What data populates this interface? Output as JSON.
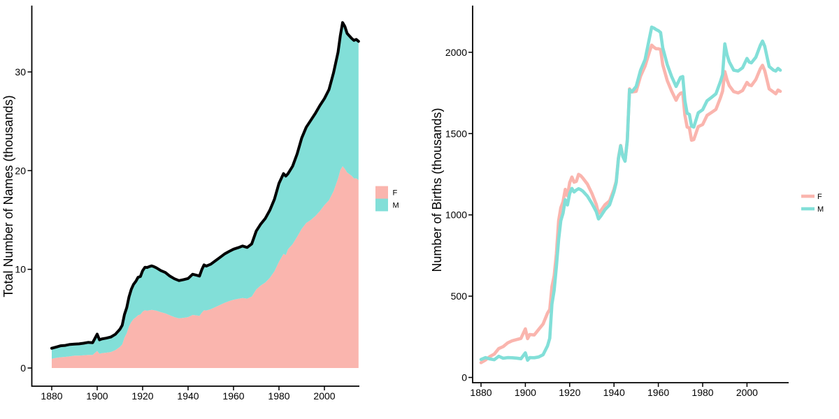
{
  "figure": {
    "background": "#ffffff",
    "text_color": "#000000",
    "axis_color": "#000000",
    "f_color": "#FAB5AE",
    "m_color": "#82DFD8",
    "total_line_color": "#000000"
  },
  "chart_data": [
    {
      "type": "area",
      "stacked": true,
      "title": "",
      "xlabel": "",
      "ylabel": "Total Number of Names (thousands)",
      "x_ticks": [
        1880,
        1900,
        1920,
        1940,
        1960,
        1980,
        2000
      ],
      "y_ticks": [
        0,
        10,
        20,
        30
      ],
      "xlim": [
        1876,
        2017
      ],
      "ylim": [
        0,
        36.8
      ],
      "grid": false,
      "legend": {
        "position": "right",
        "swatch": "fill",
        "entries": [
          {
            "label": "F",
            "color": "#FAB5AE"
          },
          {
            "label": "M",
            "color": "#82DFD8"
          }
        ]
      },
      "total_line": {
        "name": "Total",
        "color": "#000000",
        "width": 4
      },
      "x": [
        1880,
        1882,
        1884,
        1886,
        1888,
        1890,
        1892,
        1894,
        1896,
        1898,
        1900,
        1901,
        1902,
        1904,
        1906,
        1908,
        1910,
        1911,
        1912,
        1913,
        1914,
        1915,
        1916,
        1917,
        1918,
        1919,
        1920,
        1921,
        1922,
        1923,
        1924,
        1925,
        1926,
        1928,
        1930,
        1932,
        1934,
        1936,
        1938,
        1940,
        1942,
        1944,
        1945,
        1946,
        1947,
        1948,
        1950,
        1952,
        1954,
        1956,
        1958,
        1960,
        1962,
        1964,
        1966,
        1968,
        1970,
        1972,
        1974,
        1976,
        1978,
        1980,
        1982,
        1983,
        1984,
        1986,
        1988,
        1990,
        1992,
        1994,
        1996,
        1998,
        2000,
        2002,
        2004,
        2006,
        2007,
        2008,
        2009,
        2010,
        2012,
        2013,
        2014,
        2015
      ],
      "series": [
        {
          "name": "F",
          "color": "#FAB5AE",
          "values": [
            0.94,
            1.03,
            1.1,
            1.13,
            1.19,
            1.26,
            1.26,
            1.29,
            1.33,
            1.33,
            1.73,
            1.44,
            1.51,
            1.56,
            1.62,
            1.81,
            2.14,
            2.39,
            3.07,
            3.53,
            4.22,
            4.66,
            4.96,
            5.14,
            5.35,
            5.42,
            5.72,
            5.85,
            5.8,
            5.85,
            5.89,
            5.86,
            5.81,
            5.66,
            5.54,
            5.34,
            5.16,
            5.03,
            5.09,
            5.16,
            5.38,
            5.32,
            5.28,
            5.6,
            5.86,
            5.83,
            5.96,
            6.17,
            6.39,
            6.6,
            6.77,
            6.92,
            7.01,
            7.1,
            7.03,
            7.23,
            7.96,
            8.37,
            8.67,
            9.14,
            9.8,
            10.76,
            11.57,
            11.44,
            12.05,
            12.55,
            13.3,
            14.1,
            14.7,
            15.0,
            15.4,
            15.9,
            16.5,
            17.0,
            17.9,
            19.2,
            20.06,
            20.45,
            20.17,
            19.81,
            19.47,
            19.21,
            19.22,
            19.05
          ]
        },
        {
          "name": "M",
          "color": "#82DFD8",
          "values": [
            1.06,
            1.1,
            1.16,
            1.16,
            1.2,
            1.16,
            1.19,
            1.22,
            1.27,
            1.24,
            1.7,
            1.42,
            1.43,
            1.47,
            1.52,
            1.61,
            1.79,
            1.95,
            2.35,
            2.6,
            2.98,
            3.32,
            3.52,
            3.65,
            3.85,
            3.85,
            4.14,
            4.35,
            4.39,
            4.43,
            4.46,
            4.41,
            4.35,
            4.22,
            4.14,
            3.97,
            3.88,
            3.83,
            3.87,
            3.91,
            4.12,
            4.07,
            4.04,
            4.35,
            4.59,
            4.5,
            4.56,
            4.69,
            4.81,
            4.95,
            5.04,
            5.12,
            5.18,
            5.26,
            5.19,
            5.34,
            5.92,
            6.23,
            6.49,
            6.86,
            7.3,
            7.95,
            8.13,
            8.01,
            7.65,
            7.9,
            8.4,
            9.2,
            9.7,
            10.1,
            10.4,
            10.7,
            10.8,
            11.2,
            12.0,
            12.8,
            13.64,
            14.55,
            14.43,
            14.09,
            13.93,
            13.99,
            14.08,
            14.05
          ]
        }
      ]
    },
    {
      "type": "line",
      "stacked": false,
      "title": "",
      "xlabel": "",
      "ylabel": "Number of Births (thousands)",
      "x_ticks": [
        1880,
        1900,
        1920,
        1940,
        1960,
        1980,
        2000
      ],
      "y_ticks": [
        0,
        500,
        1000,
        1500,
        2000
      ],
      "xlim": [
        1876,
        2017
      ],
      "ylim": [
        0,
        2260
      ],
      "grid": false,
      "legend": {
        "position": "right",
        "swatch": "line",
        "entries": [
          {
            "label": "F",
            "color": "#FAB5AE"
          },
          {
            "label": "M",
            "color": "#82DFD8"
          }
        ]
      },
      "x": [
        1880,
        1882,
        1884,
        1886,
        1888,
        1890,
        1892,
        1894,
        1896,
        1898,
        1900,
        1901,
        1902,
        1904,
        1906,
        1908,
        1910,
        1911,
        1912,
        1913,
        1914,
        1915,
        1916,
        1917,
        1918,
        1919,
        1920,
        1921,
        1922,
        1923,
        1924,
        1925,
        1926,
        1928,
        1930,
        1932,
        1933,
        1934,
        1936,
        1938,
        1940,
        1941,
        1942,
        1943,
        1944,
        1945,
        1946,
        1947,
        1948,
        1950,
        1952,
        1954,
        1956,
        1957,
        1958,
        1959,
        1960,
        1961,
        1962,
        1964,
        1966,
        1968,
        1969,
        1970,
        1971,
        1972,
        1973,
        1974,
        1975,
        1976,
        1978,
        1980,
        1982,
        1984,
        1986,
        1988,
        1989,
        1990,
        1991,
        1992,
        1994,
        1996,
        1998,
        2000,
        2001,
        2002,
        2004,
        2006,
        2007,
        2008,
        2009,
        2010,
        2012,
        2013,
        2014,
        2015
      ],
      "series": [
        {
          "name": "F",
          "color": "#FAB5AE",
          "values": [
            91,
            107,
            129,
            144,
            178,
            190,
            212,
            225,
            233,
            240,
            299,
            239,
            264,
            261,
            295,
            329,
            396,
            418,
            558,
            625,
            761,
            964,
            1044,
            1081,
            1157,
            1117,
            1198,
            1233,
            1201,
            1206,
            1249,
            1241,
            1225,
            1189,
            1133,
            1065,
            1008,
            1025,
            1063,
            1086,
            1158,
            1208,
            1350,
            1427,
            1362,
            1332,
            1460,
            1775,
            1756,
            1760,
            1854,
            1915,
            2003,
            2044,
            2031,
            2022,
            2022,
            2017,
            1924,
            1827,
            1761,
            1705,
            1733,
            1748,
            1752,
            1613,
            1540,
            1535,
            1459,
            1463,
            1543,
            1556,
            1612,
            1630,
            1649,
            1720,
            1761,
            1881,
            1830,
            1795,
            1758,
            1750,
            1765,
            1815,
            1799,
            1795,
            1833,
            1898,
            1920,
            1887,
            1832,
            1775,
            1755,
            1745,
            1768,
            1760
          ]
        },
        {
          "name": "M",
          "color": "#82DFD8",
          "values": [
            111,
            122,
            114,
            109,
            130,
            118,
            122,
            121,
            119,
            115,
            151,
            106,
            122,
            121,
            126,
            140,
            194,
            241,
            451,
            536,
            683,
            849,
            964,
            1010,
            1093,
            1061,
            1131,
            1163,
            1141,
            1153,
            1161,
            1155,
            1145,
            1115,
            1071,
            1020,
            975,
            992,
            1033,
            1062,
            1143,
            1200,
            1345,
            1425,
            1358,
            1330,
            1457,
            1770,
            1757,
            1790,
            1890,
            1955,
            2088,
            2155,
            2149,
            2140,
            2133,
            2122,
            2028,
            1925,
            1851,
            1790,
            1817,
            1846,
            1851,
            1702,
            1625,
            1618,
            1546,
            1540,
            1628,
            1647,
            1702,
            1723,
            1745,
            1820,
            1863,
            2052,
            1985,
            1942,
            1890,
            1885,
            1905,
            1962,
            1940,
            1935,
            1970,
            2042,
            2069,
            2037,
            1975,
            1913,
            1890,
            1885,
            1901,
            1890
          ]
        }
      ]
    }
  ]
}
